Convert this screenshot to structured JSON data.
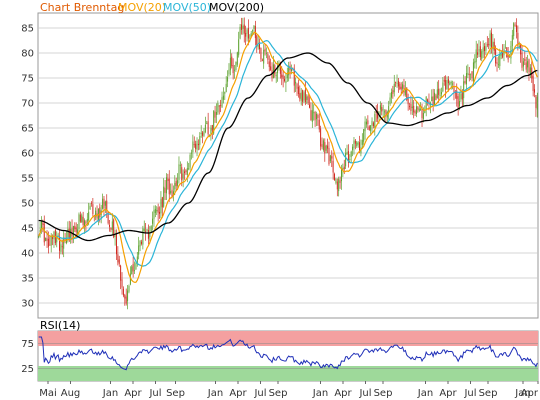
{
  "chart_data": [
    {
      "type": "candlestick",
      "title": "Chart Brenntag",
      "title_color": "#e05a00",
      "legend": [
        {
          "label": "MOV(20)",
          "color": "#f5a000"
        },
        {
          "label": "MOV(50)",
          "color": "#2bb5d8"
        },
        {
          "label": "MOV(200)",
          "color": "#000000"
        }
      ],
      "ylim": [
        27,
        88
      ],
      "yticks": [
        30,
        35,
        40,
        45,
        50,
        55,
        60,
        65,
        70,
        75,
        80,
        85
      ],
      "grid": true,
      "up_color": "#5aa02c",
      "down_color": "#d0281e",
      "xticks": [
        {
          "label": "Mai",
          "pos": 0.02
        },
        {
          "label": "Aug",
          "pos": 0.065
        },
        {
          "label": "Jan",
          "pos": 0.145
        },
        {
          "label": "Apr",
          "pos": 0.19
        },
        {
          "label": "Jul",
          "pos": 0.235
        },
        {
          "label": "Sep",
          "pos": 0.275
        },
        {
          "label": "Jan",
          "pos": 0.355
        },
        {
          "label": "Apr",
          "pos": 0.4
        },
        {
          "label": "Jul",
          "pos": 0.445
        },
        {
          "label": "Sep",
          "pos": 0.48
        },
        {
          "label": "Jan",
          "pos": 0.565
        },
        {
          "label": "Apr",
          "pos": 0.61
        },
        {
          "label": "Jul",
          "pos": 0.655
        },
        {
          "label": "Sep",
          "pos": 0.69
        },
        {
          "label": "Jan",
          "pos": 0.775
        },
        {
          "label": "Apr",
          "pos": 0.82
        },
        {
          "label": "Jul",
          "pos": 0.865
        },
        {
          "label": "Sep",
          "pos": 0.9
        },
        {
          "label": "Jan",
          "pos": 0.97
        },
        {
          "label": "Apr",
          "pos": 1.0
        }
      ],
      "close_anchors": [
        [
          0.0,
          45
        ],
        [
          0.02,
          42
        ],
        [
          0.05,
          43
        ],
        [
          0.08,
          45.5
        ],
        [
          0.11,
          48
        ],
        [
          0.13,
          49.5
        ],
        [
          0.145,
          47
        ],
        [
          0.16,
          38
        ],
        [
          0.175,
          30
        ],
        [
          0.19,
          38
        ],
        [
          0.21,
          43
        ],
        [
          0.23,
          47
        ],
        [
          0.26,
          53
        ],
        [
          0.29,
          56
        ],
        [
          0.32,
          63
        ],
        [
          0.345,
          66
        ],
        [
          0.37,
          72
        ],
        [
          0.39,
          78
        ],
        [
          0.41,
          84.5
        ],
        [
          0.43,
          84
        ],
        [
          0.45,
          80
        ],
        [
          0.47,
          77
        ],
        [
          0.49,
          76
        ],
        [
          0.51,
          75
        ],
        [
          0.53,
          71
        ],
        [
          0.55,
          68
        ],
        [
          0.57,
          62
        ],
        [
          0.585,
          58
        ],
        [
          0.6,
          54
        ],
        [
          0.62,
          60
        ],
        [
          0.64,
          62
        ],
        [
          0.66,
          65
        ],
        [
          0.68,
          67
        ],
        [
          0.7,
          70
        ],
        [
          0.72,
          75
        ],
        [
          0.74,
          70
        ],
        [
          0.76,
          68
        ],
        [
          0.78,
          70
        ],
        [
          0.8,
          72
        ],
        [
          0.82,
          74
        ],
        [
          0.84,
          70
        ],
        [
          0.86,
          74
        ],
        [
          0.88,
          79
        ],
        [
          0.9,
          82
        ],
        [
          0.92,
          79
        ],
        [
          0.94,
          80
        ],
        [
          0.955,
          85
        ],
        [
          0.97,
          78
        ],
        [
          0.985,
          76
        ],
        [
          1.0,
          70
        ]
      ],
      "mov200_anchors": [
        [
          0.0,
          46.5
        ],
        [
          0.05,
          44.5
        ],
        [
          0.1,
          42.5
        ],
        [
          0.14,
          43.5
        ],
        [
          0.18,
          44.5
        ],
        [
          0.22,
          44
        ],
        [
          0.26,
          46
        ],
        [
          0.3,
          50
        ],
        [
          0.34,
          56
        ],
        [
          0.38,
          65
        ],
        [
          0.42,
          71
        ],
        [
          0.46,
          75.5
        ],
        [
          0.5,
          79
        ],
        [
          0.54,
          80
        ],
        [
          0.58,
          78
        ],
        [
          0.62,
          74
        ],
        [
          0.66,
          70
        ],
        [
          0.7,
          66
        ],
        [
          0.74,
          65.5
        ],
        [
          0.78,
          66.5
        ],
        [
          0.82,
          68
        ],
        [
          0.86,
          69.5
        ],
        [
          0.9,
          71
        ],
        [
          0.94,
          73.5
        ],
        [
          0.98,
          75.5
        ],
        [
          1.0,
          76.5
        ]
      ]
    },
    {
      "type": "line",
      "title": "RSI(14)",
      "ylim": [
        0,
        100
      ],
      "yticks": [
        25,
        75
      ],
      "overbought_band": [
        70,
        100
      ],
      "oversold_band": [
        0,
        30
      ],
      "overbought_color": "#f4a0a0",
      "oversold_color": "#9ed99a",
      "line_color": "#1f2fb8"
    }
  ]
}
